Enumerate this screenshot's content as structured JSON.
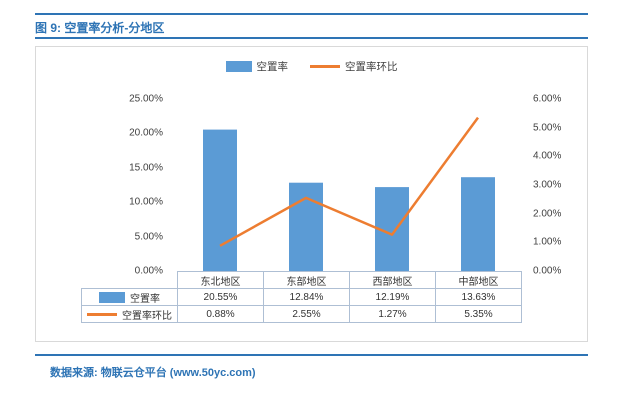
{
  "page": {
    "title": "图 9: 空置率分析-分地区",
    "footer": "数据来源: 物联云仓平台 (www.50yc.com)"
  },
  "colors": {
    "accent_blue": "#2E74B5",
    "bar_blue": "#5B9BD5",
    "line_orange": "#ED7D31"
  },
  "chart_data": {
    "type": "bar",
    "subtype": "combo-bar-line",
    "title": "空置率分析-分地区",
    "categories": [
      "东北地区",
      "东部地区",
      "西部地区",
      "中部地区"
    ],
    "series": [
      {
        "name": "空置率",
        "type": "bar",
        "axis": "left",
        "color": "#5B9BD5",
        "values": [
          20.55,
          12.84,
          12.19,
          13.63
        ],
        "labels": [
          "20.55%",
          "12.84%",
          "12.19%",
          "13.63%"
        ]
      },
      {
        "name": "空置率环比",
        "type": "line",
        "axis": "right",
        "color": "#ED7D31",
        "values": [
          0.88,
          2.55,
          1.27,
          5.35
        ],
        "labels": [
          "0.88%",
          "2.55%",
          "1.27%",
          "5.35%"
        ]
      }
    ],
    "left_axis": {
      "min": 0,
      "max": 25,
      "step": 5,
      "ticks": [
        "0.00%",
        "5.00%",
        "10.00%",
        "15.00%",
        "20.00%",
        "25.00%"
      ]
    },
    "right_axis": {
      "min": 0,
      "max": 6,
      "step": 1,
      "ticks": [
        "0.00%",
        "1.00%",
        "2.00%",
        "3.00%",
        "4.00%",
        "5.00%",
        "6.00%"
      ]
    },
    "legend_position": "top",
    "grid": false,
    "data_table_shown": true
  }
}
